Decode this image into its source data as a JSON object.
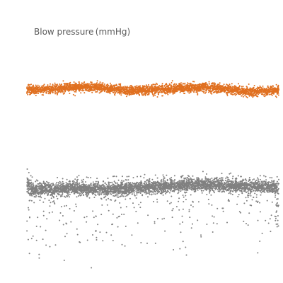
{
  "chart_data": {
    "type": "scatter",
    "title": "Blow pressure (mmHg)",
    "xlabel": "",
    "ylabel": "",
    "grid": false,
    "axes_visible": false,
    "legend": "none",
    "colors": {
      "series_upper": "#e07020",
      "series_lower": "#808080"
    },
    "series": [
      {
        "color_key": "series_upper",
        "band_center": [
          [
            0.0,
            127
          ],
          [
            0.1,
            126
          ],
          [
            0.2,
            123
          ],
          [
            0.3,
            124
          ],
          [
            0.4,
            128
          ],
          [
            0.5,
            127
          ],
          [
            0.6,
            125
          ],
          [
            0.7,
            123
          ],
          [
            0.8,
            126
          ],
          [
            0.9,
            130
          ],
          [
            1.0,
            128
          ]
        ],
        "band_half_width": 7,
        "outlier_low_max": 4,
        "point_count": 3200
      },
      {
        "color_key": "series_lower",
        "band_center": [
          [
            0.0,
            268
          ],
          [
            0.1,
            268
          ],
          [
            0.2,
            266
          ],
          [
            0.3,
            268
          ],
          [
            0.4,
            266
          ],
          [
            0.5,
            264
          ],
          [
            0.6,
            262
          ],
          [
            0.7,
            260
          ],
          [
            0.8,
            262
          ],
          [
            0.9,
            264
          ],
          [
            1.0,
            264
          ]
        ],
        "band_half_width": 10,
        "initial_spike": 20,
        "outlier_low_max": 110,
        "point_count": 4200
      }
    ]
  }
}
